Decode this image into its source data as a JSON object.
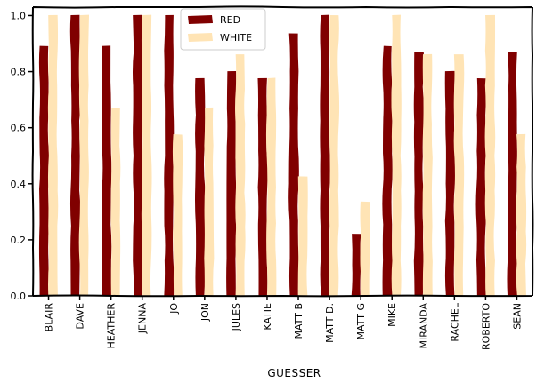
{
  "chart_data": {
    "type": "bar",
    "categories": [
      "BLAIR",
      "DAVE",
      "HEATHER",
      "JENNA",
      "JO",
      "JON",
      "JULES",
      "KATIE",
      "MATT B",
      "MATT D.",
      "MATT G",
      "MIKE",
      "MIRANDA",
      "RACHEL",
      "ROBERTO",
      "SEAN"
    ],
    "series": [
      {
        "name": "RED",
        "color": "#800000",
        "values": [
          0.89,
          1.0,
          0.89,
          1.0,
          1.0,
          0.775,
          0.8,
          0.775,
          0.935,
          1.0,
          0.22,
          0.89,
          0.87,
          0.8,
          0.775,
          0.87
        ]
      },
      {
        "name": "WHITE",
        "color": "#ffe4b5",
        "values": [
          1.0,
          1.0,
          0.67,
          1.0,
          0.575,
          0.67,
          0.86,
          0.775,
          0.425,
          1.0,
          0.335,
          1.0,
          0.86,
          0.86,
          1.0,
          0.575
        ]
      }
    ],
    "xlabel": "GUESSER",
    "ylabel": "",
    "ylim": [
      0,
      1.03
    ],
    "yticks": [
      "0.0",
      "0.2",
      "0.4",
      "0.6",
      "0.8",
      "1.0"
    ],
    "legend_position": "top-center",
    "grid": false
  }
}
